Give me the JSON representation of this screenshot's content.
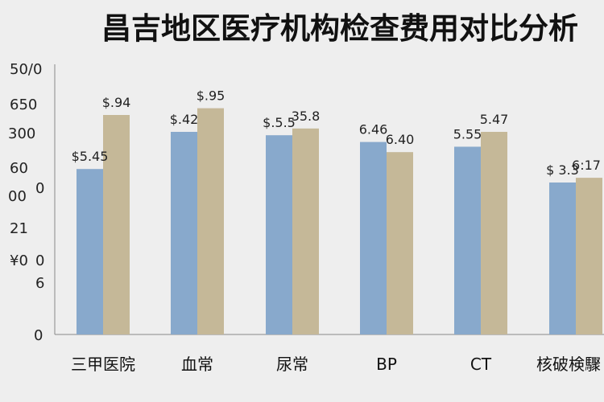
{
  "chart_data": {
    "type": "bar",
    "title": "昌吉地区医疗机构检查费用对比分析",
    "categories": [
      "三甲医院",
      "血常",
      "尿常",
      "BP",
      "CT",
      "核破検驟"
    ],
    "y_tick_labels": [
      "50/0",
      "650",
      "300",
      "60",
      "00",
      "0",
      "21",
      "¥0",
      "0",
      "6",
      "0"
    ],
    "series": [
      {
        "color": "#88a9cc",
        "values": [
          245,
          300,
          295,
          285,
          278,
          225
        ],
        "labels": [
          "$5.45",
          "$.42",
          "$.5.5",
          "6.46",
          "5.55",
          "$ 3.3"
        ]
      },
      {
        "color": "#c5b898",
        "values": [
          325,
          335,
          305,
          270,
          300,
          232
        ],
        "labels": [
          "$.94",
          "$.95",
          "35.8",
          "6.40",
          "5.47",
          "6:17"
        ]
      }
    ],
    "ylim": [
      0,
      400
    ],
    "grid": false
  }
}
